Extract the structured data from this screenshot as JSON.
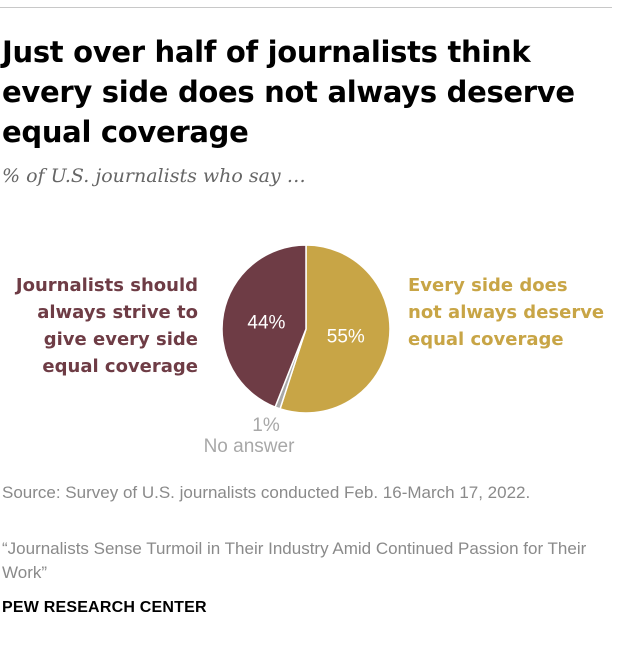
{
  "chart_data": {
    "type": "pie",
    "title": "Just over half of journalists think every side does not always deserve equal coverage",
    "subtitle": "% of U.S. journalists who say …",
    "slices": [
      {
        "name": "Every side does not always deserve equal coverage",
        "label_lines": [
          "Every side does",
          "not always deserve",
          "equal coverage"
        ],
        "value": 55,
        "display": "55%",
        "color": "#c8a546"
      },
      {
        "name": "No answer",
        "label_lines": [
          "No answer"
        ],
        "value": 1,
        "display": "1%",
        "color": "#a8a8a8"
      },
      {
        "name": "Journalists should always strive to give every side equal coverage",
        "label_lines": [
          "Journalists should",
          "always strive to",
          "give every side",
          "equal coverage"
        ],
        "value": 44,
        "display": "44%",
        "color": "#6e3c45"
      }
    ]
  },
  "footer": {
    "source": "Source: Survey of U.S. journalists conducted Feb. 16-March 17, 2022.",
    "report": "“Journalists Sense Turmoil in Their Industry Amid Continued Passion for Their Work”",
    "org": "PEW RESEARCH CENTER"
  }
}
